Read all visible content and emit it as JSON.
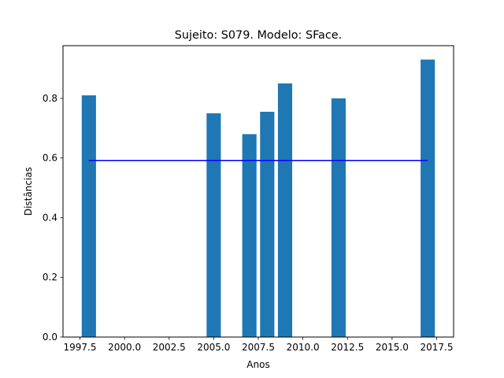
{
  "chart_data": {
    "type": "bar",
    "title": "Sujeito: S079. Modelo: SFace.",
    "xlabel": "Anos",
    "ylabel": "Distâncias",
    "x": [
      1998,
      2005,
      2007,
      2008,
      2009,
      2012,
      2017
    ],
    "values": [
      0.81,
      0.75,
      0.68,
      0.755,
      0.85,
      0.8,
      0.93
    ],
    "bar_width": 0.8,
    "bar_color": "#1f77b4",
    "reference_line": {
      "value": 0.592,
      "x_start": 1998,
      "x_end": 2017,
      "color": "#0000ff"
    },
    "xlim": [
      1996.55,
      2018.45
    ],
    "ylim": [
      0,
      0.9765
    ],
    "xticks": [
      1997.5,
      2000.0,
      2002.5,
      2005.0,
      2007.5,
      2010.0,
      2012.5,
      2015.0,
      2017.5
    ],
    "xtick_labels": [
      "1997.5",
      "2000.0",
      "2002.5",
      "2005.0",
      "2007.5",
      "2010.0",
      "2012.5",
      "2015.0",
      "2017.5"
    ],
    "yticks": [
      0.0,
      0.2,
      0.4,
      0.6,
      0.8
    ],
    "ytick_labels": [
      "0.0",
      "0.2",
      "0.4",
      "0.6",
      "0.8"
    ],
    "grid": false
  }
}
